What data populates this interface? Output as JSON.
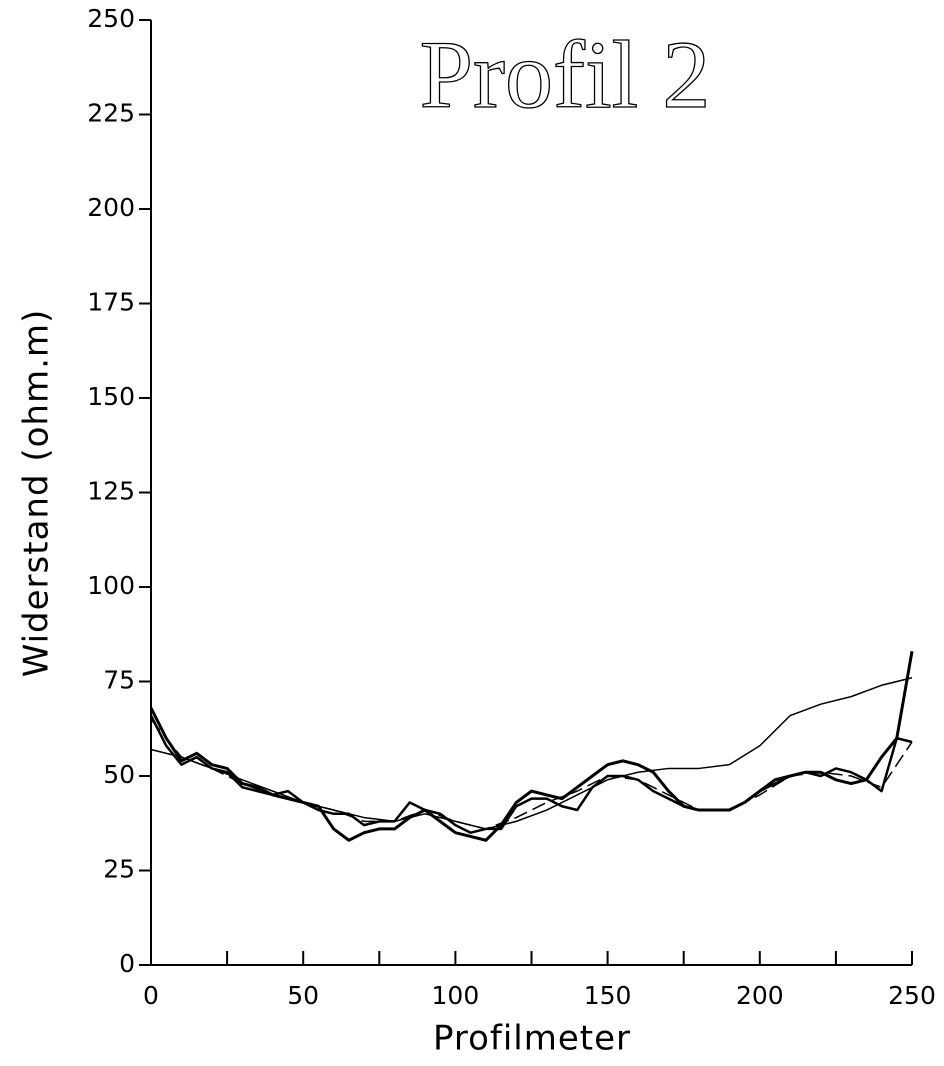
{
  "chart_data": {
    "type": "line",
    "title": "Profil 2",
    "x_label": "Profilmeter",
    "y_label": "Widerstand (ohm.m)",
    "xlim": [
      0,
      250
    ],
    "xticks": [
      0,
      50,
      100,
      150,
      200,
      250
    ],
    "xminorticks": [
      25,
      75,
      125,
      175,
      225
    ],
    "ylim": [
      0,
      250
    ],
    "yticks": [
      0,
      25,
      50,
      75,
      100,
      125,
      150,
      175,
      200,
      225,
      250
    ],
    "series": [
      {
        "color": "#000",
        "width": 1.5,
        "dash": "none",
        "x": [
          0,
          10,
          20,
          30,
          40,
          50,
          60,
          70,
          80,
          90,
          100,
          110,
          120,
          130,
          140,
          150,
          160,
          170,
          180,
          190,
          200,
          210,
          220,
          230,
          240,
          250
        ],
        "values": [
          57,
          55,
          52,
          49,
          46,
          43,
          41,
          39,
          38,
          40,
          38,
          36,
          38,
          41,
          45,
          49,
          51,
          52,
          52,
          53,
          58,
          66,
          69,
          71,
          74,
          76
        ]
      },
      {
        "color": "#000",
        "width": 1.5,
        "dash": "14 6",
        "x": [
          0,
          10,
          20,
          30,
          40,
          50,
          60,
          70,
          80,
          90,
          100,
          110,
          120,
          130,
          140,
          150,
          160,
          170,
          180,
          190,
          200,
          210,
          220,
          230,
          240,
          250
        ],
        "values": [
          65,
          55,
          52,
          48,
          45,
          43,
          41,
          38,
          38,
          41,
          38,
          36,
          39,
          43,
          46,
          50,
          49,
          45,
          41,
          41,
          45,
          50,
          51,
          50,
          47,
          59
        ]
      },
      {
        "color": "#000",
        "width": 2.5,
        "dash": "none",
        "x": [
          0,
          5,
          10,
          15,
          20,
          25,
          30,
          35,
          40,
          45,
          50,
          55,
          60,
          65,
          70,
          75,
          80,
          85,
          90,
          95,
          100,
          105,
          110,
          115,
          120,
          125,
          130,
          135,
          140,
          145,
          150,
          155,
          160,
          165,
          170,
          175,
          180,
          185,
          190,
          195,
          200,
          205,
          210,
          215,
          220,
          225,
          230,
          235,
          240,
          245,
          250
        ],
        "values": [
          66,
          58,
          53,
          55,
          52,
          51,
          47,
          46,
          45,
          46,
          43,
          41,
          40,
          40,
          37,
          38,
          38,
          43,
          41,
          40,
          37,
          35,
          36,
          36,
          42,
          44,
          44,
          42,
          41,
          47,
          50,
          50,
          49,
          46,
          44,
          42,
          41,
          41,
          41,
          43,
          46,
          48,
          50,
          51,
          50,
          52,
          51,
          49,
          46,
          60,
          59
        ]
      },
      {
        "color": "#000",
        "width": 3,
        "dash": "none",
        "x": [
          0,
          5,
          10,
          15,
          20,
          25,
          30,
          35,
          40,
          45,
          50,
          55,
          60,
          65,
          70,
          75,
          80,
          85,
          90,
          95,
          100,
          105,
          110,
          115,
          120,
          125,
          130,
          135,
          140,
          145,
          150,
          155,
          160,
          165,
          170,
          175,
          180,
          185,
          190,
          195,
          200,
          205,
          210,
          215,
          220,
          225,
          230,
          235,
          240,
          245,
          250
        ],
        "values": [
          68,
          60,
          54,
          56,
          53,
          52,
          48,
          47,
          45,
          44,
          43,
          42,
          36,
          33,
          35,
          36,
          36,
          39,
          41,
          38,
          35,
          34,
          33,
          37,
          43,
          46,
          45,
          44,
          47,
          50,
          53,
          54,
          53,
          51,
          46,
          42,
          41,
          41,
          41,
          43,
          46,
          49,
          50,
          51,
          51,
          49,
          48,
          49,
          55,
          60,
          83
        ]
      }
    ]
  }
}
